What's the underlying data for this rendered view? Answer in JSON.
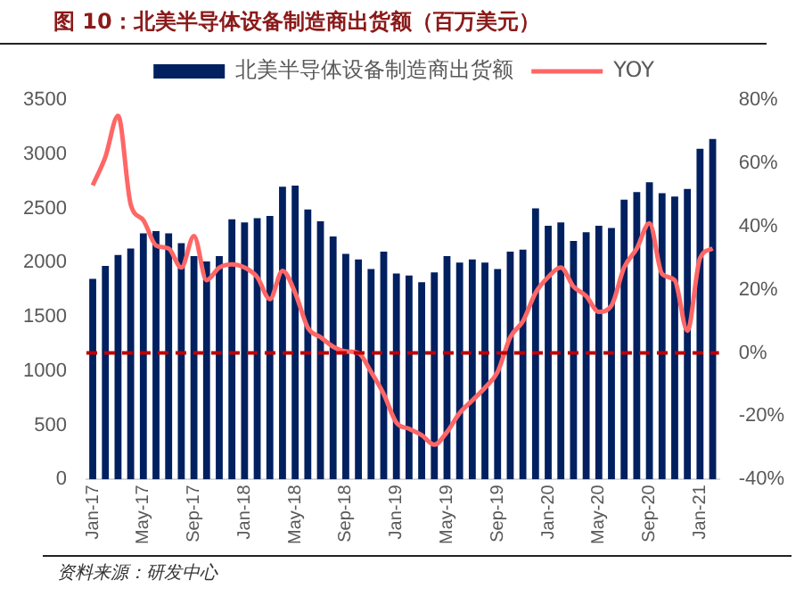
{
  "chart_data": {
    "type": "bar",
    "title": "图 10：北美半导体设备制造商出货额（百万美元）",
    "categories": [
      "Jan-17",
      null,
      null,
      null,
      "May-17",
      null,
      null,
      null,
      "Sep-17",
      null,
      null,
      null,
      "Jan-18",
      null,
      null,
      null,
      "May-18",
      null,
      null,
      null,
      "Sep-18",
      null,
      null,
      null,
      "Jan-19",
      null,
      null,
      null,
      "May-19",
      null,
      null,
      null,
      "Sep-19",
      null,
      null,
      null,
      "Jan-20",
      null,
      null,
      null,
      "May-20",
      null,
      null,
      null,
      "Sep-20",
      null,
      null,
      null,
      "Jan-21",
      null
    ],
    "series": [
      {
        "name": "北美半导体设备制造商出货额",
        "color": "#002060",
        "values": [
          1850,
          1970,
          2070,
          2130,
          2270,
          2290,
          2270,
          2180,
          2060,
          2010,
          2060,
          2400,
          2370,
          2410,
          2430,
          2700,
          2710,
          2490,
          2380,
          2240,
          2080,
          2030,
          1940,
          2100,
          1900,
          1880,
          1820,
          1910,
          2060,
          2000,
          2030,
          2000,
          1940,
          2100,
          2120,
          2500,
          2340,
          2370,
          2200,
          2280,
          2340,
          2320,
          2580,
          2650,
          2740,
          2640,
          2610,
          2680,
          3050,
          3140
        ]
      },
      {
        "name": "YOY",
        "type": "line",
        "axis": "y2",
        "color": "#ff6666",
        "values": [
          53,
          62,
          75,
          47,
          42,
          34,
          33,
          27,
          37,
          23,
          27,
          28,
          27,
          24,
          17,
          26,
          19,
          8,
          5,
          2,
          0.5,
          0,
          -6,
          -13,
          -22,
          -24,
          -26,
          -29,
          -25,
          -19,
          -15,
          -11,
          -6,
          5,
          10,
          19,
          24,
          27,
          21,
          18,
          13,
          15,
          27,
          33,
          41,
          25,
          23,
          7,
          30,
          33
        ]
      }
    ],
    "ylim": [
      0,
      3500
    ],
    "yticks": [
      0,
      500,
      1000,
      1500,
      2000,
      2500,
      3000,
      3500
    ],
    "y2lim": [
      -40,
      80
    ],
    "y2ticks": [
      {
        "value": -40,
        "label": "-40%"
      },
      {
        "value": -20,
        "label": "-20%"
      },
      {
        "value": 0,
        "label": "0%"
      },
      {
        "value": 20,
        "label": "20%"
      },
      {
        "value": 40,
        "label": "40%"
      },
      {
        "value": 60,
        "label": "60%"
      },
      {
        "value": 80,
        "label": "80%"
      }
    ],
    "ref_lines": [
      {
        "axis": "y2",
        "value": 0,
        "color": "#c00000",
        "line_style": "dashed"
      }
    ],
    "grid": false,
    "legend": "top",
    "marker": "none",
    "line_style": "solid",
    "annotations": [
      "资料来源：研发中心"
    ]
  }
}
